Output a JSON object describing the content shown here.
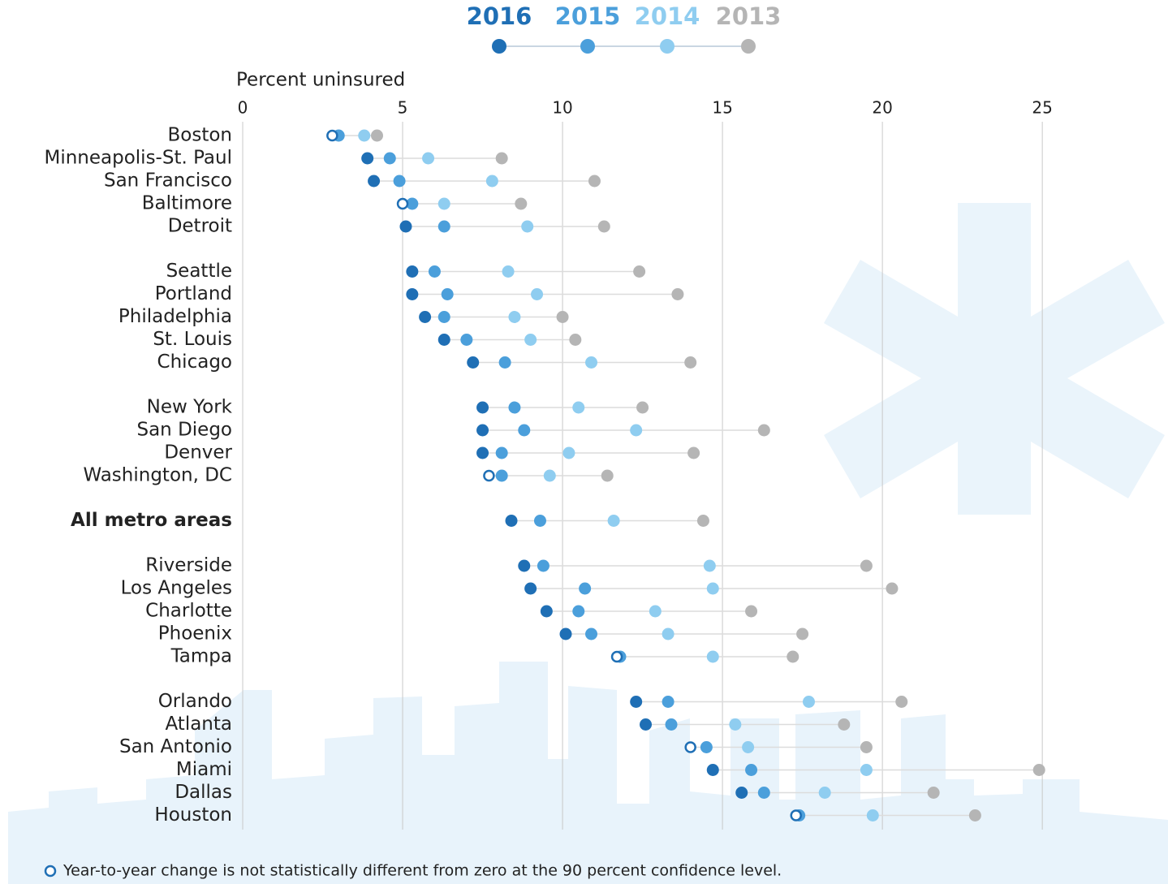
{
  "chart_data": {
    "type": "dot",
    "x_axis_label": "Percent uninsured",
    "footnote": "Year-to-year change is not statistically different from zero at the 90 percent confidence level.",
    "categories": [
      "Boston",
      "Minneapolis-St. Paul",
      "San Francisco",
      "Baltimore",
      "Detroit",
      "Seattle",
      "Portland",
      "Philadelphia",
      "St. Louis",
      "Chicago",
      "New York",
      "San Diego",
      "Denver",
      "Washington, DC",
      "All metro areas",
      "Riverside",
      "Los Angeles",
      "Charlotte",
      "Phoenix",
      "Tampa",
      "Orlando",
      "Atlanta",
      "San Antonio",
      "Miami",
      "Dallas",
      "Houston"
    ],
    "not_significant": [
      true,
      false,
      false,
      true,
      false,
      false,
      false,
      false,
      false,
      false,
      false,
      false,
      false,
      true,
      false,
      false,
      false,
      false,
      false,
      true,
      false,
      false,
      true,
      false,
      false,
      true
    ],
    "series": [
      {
        "name": "2013",
        "color": "#b5b5b5",
        "values": [
          4.2,
          8.1,
          11.0,
          8.7,
          11.3,
          12.4,
          13.6,
          10.0,
          10.4,
          14.0,
          12.5,
          16.3,
          14.1,
          11.4,
          14.4,
          19.5,
          20.3,
          15.9,
          17.5,
          17.2,
          20.6,
          18.8,
          19.5,
          24.9,
          21.6,
          22.9
        ]
      },
      {
        "name": "2014",
        "color": "#8fcdf0",
        "values": [
          3.8,
          5.8,
          7.8,
          6.3,
          8.9,
          8.3,
          9.2,
          8.5,
          9.0,
          10.9,
          10.5,
          12.3,
          10.2,
          9.6,
          11.6,
          14.6,
          14.7,
          12.9,
          13.3,
          14.7,
          17.7,
          15.4,
          15.8,
          19.5,
          18.2,
          19.7
        ]
      },
      {
        "name": "2015",
        "color": "#4b9fdb",
        "values": [
          3.0,
          4.6,
          4.9,
          5.3,
          6.3,
          6.0,
          6.4,
          6.3,
          7.0,
          8.2,
          8.5,
          8.8,
          8.1,
          8.1,
          9.3,
          9.4,
          10.7,
          10.5,
          10.9,
          11.8,
          13.3,
          13.4,
          14.5,
          15.9,
          16.3,
          17.4
        ]
      },
      {
        "name": "2016",
        "color": "#1f6fb5",
        "values": [
          2.8,
          3.9,
          4.1,
          5.0,
          5.1,
          5.3,
          5.3,
          5.7,
          6.3,
          7.2,
          7.5,
          7.5,
          7.5,
          7.7,
          8.4,
          8.8,
          9.0,
          9.5,
          10.1,
          11.7,
          12.3,
          12.6,
          14.0,
          14.7,
          15.6,
          17.3
        ]
      }
    ],
    "xlim": [
      0,
      28.6
    ],
    "xticks": [
      0,
      5,
      10,
      15,
      20,
      25
    ],
    "grid": true
  }
}
